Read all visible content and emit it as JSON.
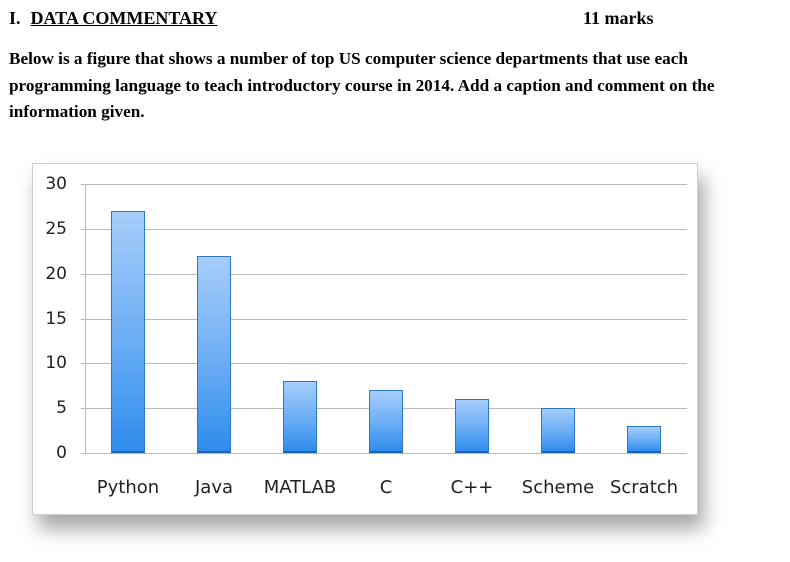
{
  "heading": {
    "number": "I.",
    "title": "DATA COMMENTARY",
    "marks": "11 marks"
  },
  "instructions": "Below is a figure that shows a number of top US computer science departments that use each programming language to teach introductory course in 2014. Add a caption and comment on the information given.",
  "colors": {
    "bar_top": "#a6cdfa",
    "bar_bottom": "#2f8cec",
    "bar_border": "#2c79c9",
    "grid": "#b8b8b8"
  },
  "chart_data": {
    "type": "bar",
    "title": "",
    "xlabel": "",
    "ylabel": "",
    "categories": [
      "Python",
      "Java",
      "MATLAB",
      "C",
      "C++",
      "Scheme",
      "Scratch"
    ],
    "values": [
      27,
      22,
      8,
      7,
      6,
      5,
      3
    ],
    "ylim": [
      0,
      30
    ],
    "yticks": [
      0,
      5,
      10,
      15,
      20,
      25,
      30
    ],
    "grid": true,
    "legend": null
  }
}
